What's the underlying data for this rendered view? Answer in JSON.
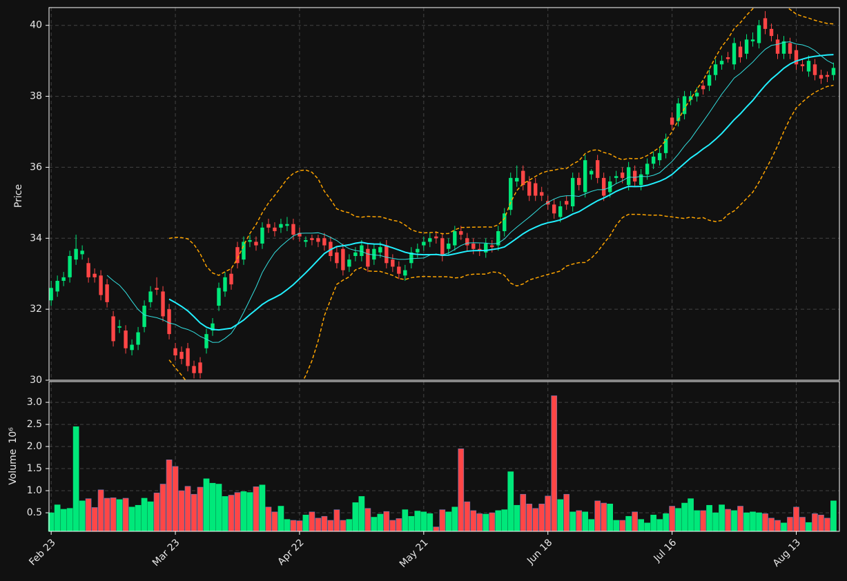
{
  "chart_data": {
    "type": "candlestick",
    "ylabel": "Price",
    "ylim": [
      30,
      40.5
    ],
    "yticks": [
      30,
      32,
      34,
      36,
      38,
      40
    ],
    "grid": true,
    "up_color": "#00e87a",
    "down_color": "#ff4646",
    "background": "#111111",
    "moving_averages": [
      {
        "window": 10,
        "color": "#33e0e0",
        "width": 1
      },
      {
        "window": 20,
        "color": "#22f0ff",
        "width": 2
      }
    ],
    "bollinger": {
      "window": 20,
      "std": 2,
      "color": "#ffa500"
    },
    "xticks": [
      0,
      20,
      40,
      60,
      80,
      100,
      120
    ],
    "categories": [
      "Feb 23",
      null,
      null,
      null,
      null,
      null,
      null,
      null,
      null,
      null,
      null,
      null,
      null,
      null,
      null,
      null,
      null,
      null,
      null,
      null,
      "Mar 23",
      null,
      null,
      null,
      null,
      null,
      null,
      null,
      null,
      null,
      null,
      null,
      null,
      null,
      null,
      null,
      null,
      null,
      null,
      null,
      "Apr 22",
      null,
      null,
      null,
      null,
      null,
      null,
      null,
      null,
      null,
      null,
      null,
      null,
      null,
      null,
      null,
      null,
      null,
      null,
      null,
      "May 21",
      null,
      null,
      null,
      null,
      null,
      null,
      null,
      null,
      null,
      null,
      null,
      null,
      null,
      null,
      null,
      null,
      null,
      null,
      null,
      "Jun 18",
      null,
      null,
      null,
      null,
      null,
      null,
      null,
      null,
      null,
      null,
      null,
      null,
      null,
      null,
      null,
      null,
      null,
      null,
      null,
      "Jul 16",
      null,
      null,
      null,
      null,
      null,
      null,
      null,
      null,
      null,
      null,
      null,
      null,
      null,
      null,
      null,
      null,
      null,
      null,
      null,
      "Aug 13",
      null,
      null,
      null,
      null,
      null,
      null
    ],
    "open": [
      32.25,
      32.5,
      32.8,
      32.9,
      33.4,
      33.55,
      33.3,
      33.0,
      32.95,
      32.7,
      31.8,
      31.48,
      31.4,
      30.85,
      31.0,
      31.5,
      32.2,
      32.6,
      32.5,
      32.0,
      30.9,
      30.8,
      30.9,
      30.4,
      30.5,
      30.9,
      31.4,
      32.1,
      32.5,
      33.0,
      33.75,
      33.4,
      33.9,
      33.9,
      33.85,
      34.4,
      34.3,
      34.3,
      34.35,
      34.4,
      34.15,
      33.9,
      34.0,
      34.0,
      34.0,
      33.9,
      33.6,
      33.7,
      33.2,
      33.5,
      33.5,
      33.7,
      33.4,
      33.6,
      33.8,
      33.4,
      33.2,
      32.95,
      33.3,
      33.6,
      33.8,
      33.9,
      34.05,
      34.0,
      33.7,
      33.8,
      34.2,
      34.0,
      33.85,
      33.7,
      33.6,
      33.8,
      33.8,
      34.2,
      34.8,
      35.6,
      35.9,
      35.6,
      35.55,
      35.3,
      35.05,
      34.95,
      34.6,
      35.05,
      34.9,
      35.7,
      35.3,
      35.8,
      36.2,
      35.7,
      35.3,
      35.7,
      35.85,
      35.5,
      35.9,
      35.5,
      35.8,
      36.1,
      36.2,
      36.4,
      37.4,
      37.3,
      37.5,
      37.9,
      38.0,
      38.3,
      38.3,
      38.6,
      38.9,
      39.1,
      38.9,
      39.4,
      39.2,
      39.55,
      39.5,
      40.2,
      39.9,
      39.6,
      39.2,
      39.5,
      39.3,
      38.9,
      38.7,
      38.9,
      38.6,
      38.6,
      38.6
    ],
    "high": [
      32.8,
      32.95,
      33.05,
      33.65,
      34.1,
      33.8,
      33.45,
      33.15,
      33.1,
      32.85,
      31.95,
      31.7,
      31.55,
      31.15,
      31.5,
      32.25,
      32.65,
      32.9,
      32.65,
      32.15,
      31.05,
      30.95,
      31.05,
      30.55,
      30.65,
      31.45,
      31.75,
      32.75,
      33.05,
      33.15,
      33.9,
      34.05,
      34.1,
      34.05,
      34.45,
      34.55,
      34.45,
      34.55,
      34.6,
      34.55,
      34.3,
      34.05,
      34.1,
      34.1,
      34.15,
      34.05,
      33.75,
      33.85,
      33.55,
      33.75,
      33.95,
      33.85,
      33.85,
      33.9,
      33.95,
      33.55,
      33.35,
      33.25,
      33.75,
      33.85,
      34.05,
      34.15,
      34.2,
      34.15,
      34.0,
      34.35,
      34.35,
      34.15,
      34.0,
      33.85,
      34.0,
      33.95,
      34.35,
      34.85,
      35.85,
      36.05,
      36.05,
      35.75,
      35.7,
      35.45,
      35.2,
      35.1,
      35.05,
      35.2,
      35.85,
      35.85,
      36.35,
      35.95,
      36.35,
      35.85,
      35.75,
      35.9,
      36.0,
      36.15,
      36.05,
      35.95,
      36.25,
      36.45,
      36.55,
      36.95,
      37.55,
      37.95,
      38.15,
      38.15,
      38.25,
      38.45,
      38.75,
      39.05,
      39.15,
      39.25,
      39.65,
      39.55,
      39.75,
      39.8,
      40.15,
      40.4,
      40.05,
      39.75,
      39.7,
      39.65,
      39.45,
      39.05,
      39.15,
      39.05,
      38.75,
      38.7,
      38.95
    ],
    "low": [
      32.1,
      32.35,
      32.65,
      32.75,
      33.25,
      33.4,
      32.75,
      32.75,
      32.25,
      32.05,
      30.95,
      31.33,
      30.75,
      30.7,
      30.85,
      31.35,
      32.05,
      32.4,
      31.65,
      31.15,
      30.55,
      30.45,
      30.25,
      30.05,
      30.05,
      30.75,
      31.25,
      31.95,
      32.35,
      32.55,
      33.15,
      33.25,
      33.75,
      33.65,
      33.7,
      34.15,
      34.05,
      34.15,
      34.2,
      33.95,
      33.9,
      33.75,
      33.8,
      33.75,
      33.65,
      33.35,
      33.15,
      32.95,
      33.05,
      33.35,
      33.35,
      33.05,
      33.25,
      33.45,
      33.15,
      33.05,
      32.85,
      32.8,
      33.15,
      33.45,
      33.65,
      33.75,
      33.85,
      33.35,
      33.55,
      33.65,
      33.95,
      33.65,
      33.55,
      33.5,
      33.45,
      33.6,
      33.65,
      34.05,
      34.65,
      35.45,
      35.35,
      35.05,
      35.05,
      35.05,
      34.8,
      34.55,
      34.45,
      34.8,
      34.75,
      35.35,
      35.15,
      35.65,
      35.55,
      35.05,
      35.15,
      35.55,
      35.55,
      35.35,
      35.45,
      35.35,
      35.65,
      35.95,
      36.05,
      36.25,
      37.05,
      37.15,
      37.35,
      37.75,
      37.85,
      38.05,
      38.15,
      38.45,
      38.75,
      38.95,
      38.75,
      38.95,
      39.05,
      39.4,
      39.35,
      39.75,
      39.55,
      39.05,
      39.05,
      39.05,
      38.75,
      38.7,
      38.55,
      38.45,
      38.35,
      38.4,
      38.45
    ],
    "close": [
      32.6,
      32.8,
      32.9,
      33.5,
      33.7,
      33.65,
      32.9,
      32.9,
      32.4,
      32.2,
      31.1,
      31.52,
      30.9,
      31.0,
      31.35,
      32.1,
      32.5,
      32.55,
      31.8,
      31.3,
      30.7,
      30.6,
      30.4,
      30.2,
      30.2,
      31.3,
      31.6,
      32.6,
      32.9,
      32.7,
      33.3,
      33.9,
      33.95,
      33.8,
      34.3,
      34.3,
      34.2,
      34.4,
      34.4,
      34.1,
      34.05,
      33.95,
      33.95,
      33.9,
      33.8,
      33.5,
      33.3,
      33.1,
      33.4,
      33.6,
      33.8,
      33.2,
      33.7,
      33.75,
      33.3,
      33.2,
      33.0,
      33.1,
      33.6,
      33.7,
      33.9,
      34.0,
      34.0,
      33.5,
      33.85,
      34.2,
      34.1,
      33.8,
      33.7,
      33.65,
      33.85,
      33.75,
      34.2,
      34.7,
      35.7,
      35.7,
      35.5,
      35.2,
      35.2,
      35.2,
      34.95,
      34.7,
      34.9,
      34.95,
      35.7,
      35.5,
      36.2,
      35.9,
      35.7,
      35.2,
      35.6,
      35.75,
      35.7,
      36.0,
      35.6,
      35.8,
      36.1,
      36.3,
      36.4,
      36.8,
      37.2,
      37.8,
      38.0,
      38.0,
      38.1,
      38.2,
      38.6,
      38.9,
      39.0,
      39.05,
      39.5,
      39.1,
      39.6,
      39.6,
      40.0,
      39.9,
      39.7,
      39.2,
      39.55,
      39.2,
      38.9,
      38.85,
      39.0,
      38.6,
      38.5,
      38.55,
      38.8
    ],
    "volume_panel": {
      "ylabel": "Volume",
      "unit": "10⁶",
      "ylim": [
        0.08,
        3.47
      ],
      "yticks": [
        0.5,
        {
          "value": 1,
          "label": "1.0"
        },
        1.5,
        {
          "value": 2,
          "label": "2.0"
        },
        2.5,
        {
          "value": 3,
          "label": "3.0"
        }
      ],
      "values": [
        0.5,
        0.68,
        0.58,
        0.6,
        2.45,
        0.77,
        0.82,
        0.62,
        1.02,
        0.83,
        0.84,
        0.8,
        0.83,
        0.63,
        0.67,
        0.83,
        0.75,
        0.95,
        1.15,
        1.7,
        1.55,
        1.0,
        1.1,
        0.92,
        1.08,
        1.27,
        1.17,
        1.15,
        0.87,
        0.9,
        0.96,
        0.98,
        0.96,
        1.09,
        1.13,
        0.63,
        0.52,
        0.65,
        0.35,
        0.33,
        0.32,
        0.45,
        0.52,
        0.38,
        0.42,
        0.33,
        0.57,
        0.33,
        0.35,
        0.73,
        0.87,
        0.6,
        0.4,
        0.47,
        0.53,
        0.33,
        0.37,
        0.57,
        0.42,
        0.54,
        0.52,
        0.48,
        0.18,
        0.57,
        0.52,
        0.63,
        1.95,
        0.75,
        0.55,
        0.48,
        0.47,
        0.5,
        0.55,
        0.57,
        1.43,
        0.67,
        0.92,
        0.7,
        0.6,
        0.7,
        0.88,
        3.15,
        0.8,
        0.92,
        0.52,
        0.55,
        0.52,
        0.35,
        0.77,
        0.72,
        0.7,
        0.33,
        0.33,
        0.42,
        0.52,
        0.35,
        0.27,
        0.45,
        0.35,
        0.48,
        0.65,
        0.6,
        0.72,
        0.82,
        0.55,
        0.55,
        0.67,
        0.5,
        0.68,
        0.58,
        0.55,
        0.65,
        0.5,
        0.52,
        0.5,
        0.48,
        0.38,
        0.33,
        0.27,
        0.4,
        0.63,
        0.4,
        0.28,
        0.48,
        0.45,
        0.38,
        0.77
      ]
    }
  }
}
